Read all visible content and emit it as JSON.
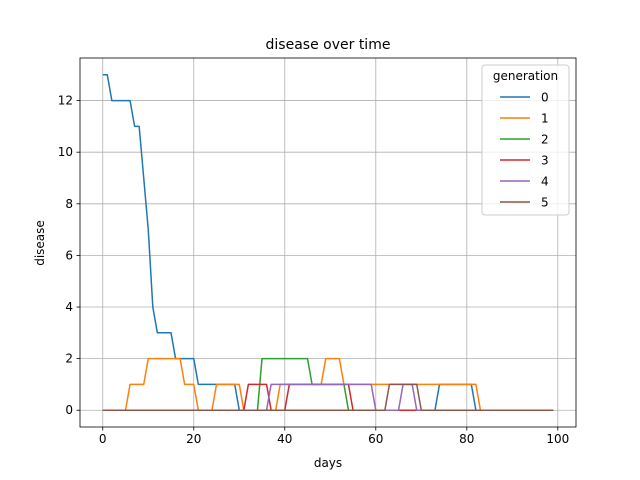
{
  "chart_data": {
    "type": "line",
    "title": "disease over time",
    "xlabel": "days",
    "ylabel": "disease",
    "xlim": [
      -5,
      104
    ],
    "ylim": [
      -0.65,
      13.65
    ],
    "xticks": [
      0,
      20,
      40,
      60,
      80,
      100
    ],
    "yticks": [
      0,
      2,
      4,
      6,
      8,
      10,
      12
    ],
    "grid": true,
    "legend": {
      "title": "generation",
      "placement": "top-right"
    },
    "series": [
      {
        "name": "0",
        "color": "#1f77b4",
        "points": [
          [
            0,
            13
          ],
          [
            1,
            13
          ],
          [
            2,
            12
          ],
          [
            6,
            12
          ],
          [
            7,
            11
          ],
          [
            8,
            11
          ],
          [
            9,
            9
          ],
          [
            10,
            7
          ],
          [
            11,
            4
          ],
          [
            12,
            3
          ],
          [
            15,
            3
          ],
          [
            16,
            2
          ],
          [
            20,
            2
          ],
          [
            21,
            1
          ],
          [
            29,
            1
          ],
          [
            30,
            0
          ],
          [
            73,
            0
          ],
          [
            74,
            1
          ],
          [
            81,
            1
          ],
          [
            82,
            0
          ],
          [
            99,
            0
          ]
        ]
      },
      {
        "name": "1",
        "color": "#ff7f0e",
        "points": [
          [
            0,
            0
          ],
          [
            5,
            0
          ],
          [
            6,
            1
          ],
          [
            9,
            1
          ],
          [
            10,
            2
          ],
          [
            17,
            2
          ],
          [
            18,
            1
          ],
          [
            20,
            1
          ],
          [
            21,
            0
          ],
          [
            24,
            0
          ],
          [
            25,
            1
          ],
          [
            30,
            1
          ],
          [
            31,
            0
          ],
          [
            38,
            0
          ],
          [
            39,
            1
          ],
          [
            48,
            1
          ],
          [
            49,
            2
          ],
          [
            52,
            2
          ],
          [
            53,
            1
          ],
          [
            82,
            1
          ],
          [
            83,
            0
          ],
          [
            99,
            0
          ]
        ]
      },
      {
        "name": "2",
        "color": "#2ca02c",
        "points": [
          [
            0,
            0
          ],
          [
            34,
            0
          ],
          [
            35,
            2
          ],
          [
            45,
            2
          ],
          [
            46,
            1
          ],
          [
            53,
            1
          ],
          [
            54,
            0
          ],
          [
            99,
            0
          ]
        ]
      },
      {
        "name": "3",
        "color": "#d62728",
        "points": [
          [
            0,
            0
          ],
          [
            31,
            0
          ],
          [
            32,
            1
          ],
          [
            36,
            1
          ],
          [
            37,
            0
          ],
          [
            40,
            0
          ],
          [
            41,
            1
          ],
          [
            54,
            1
          ],
          [
            55,
            0
          ],
          [
            99,
            0
          ]
        ]
      },
      {
        "name": "4",
        "color": "#9467bd",
        "points": [
          [
            0,
            0
          ],
          [
            36,
            0
          ],
          [
            37,
            1
          ],
          [
            59,
            1
          ],
          [
            60,
            0
          ],
          [
            65,
            0
          ],
          [
            66,
            1
          ],
          [
            68,
            1
          ],
          [
            69,
            0
          ],
          [
            99,
            0
          ]
        ]
      },
      {
        "name": "5",
        "color": "#8c564b",
        "points": [
          [
            0,
            0
          ],
          [
            62,
            0
          ],
          [
            63,
            1
          ],
          [
            69,
            1
          ],
          [
            70,
            0
          ],
          [
            99,
            0
          ]
        ]
      }
    ]
  }
}
